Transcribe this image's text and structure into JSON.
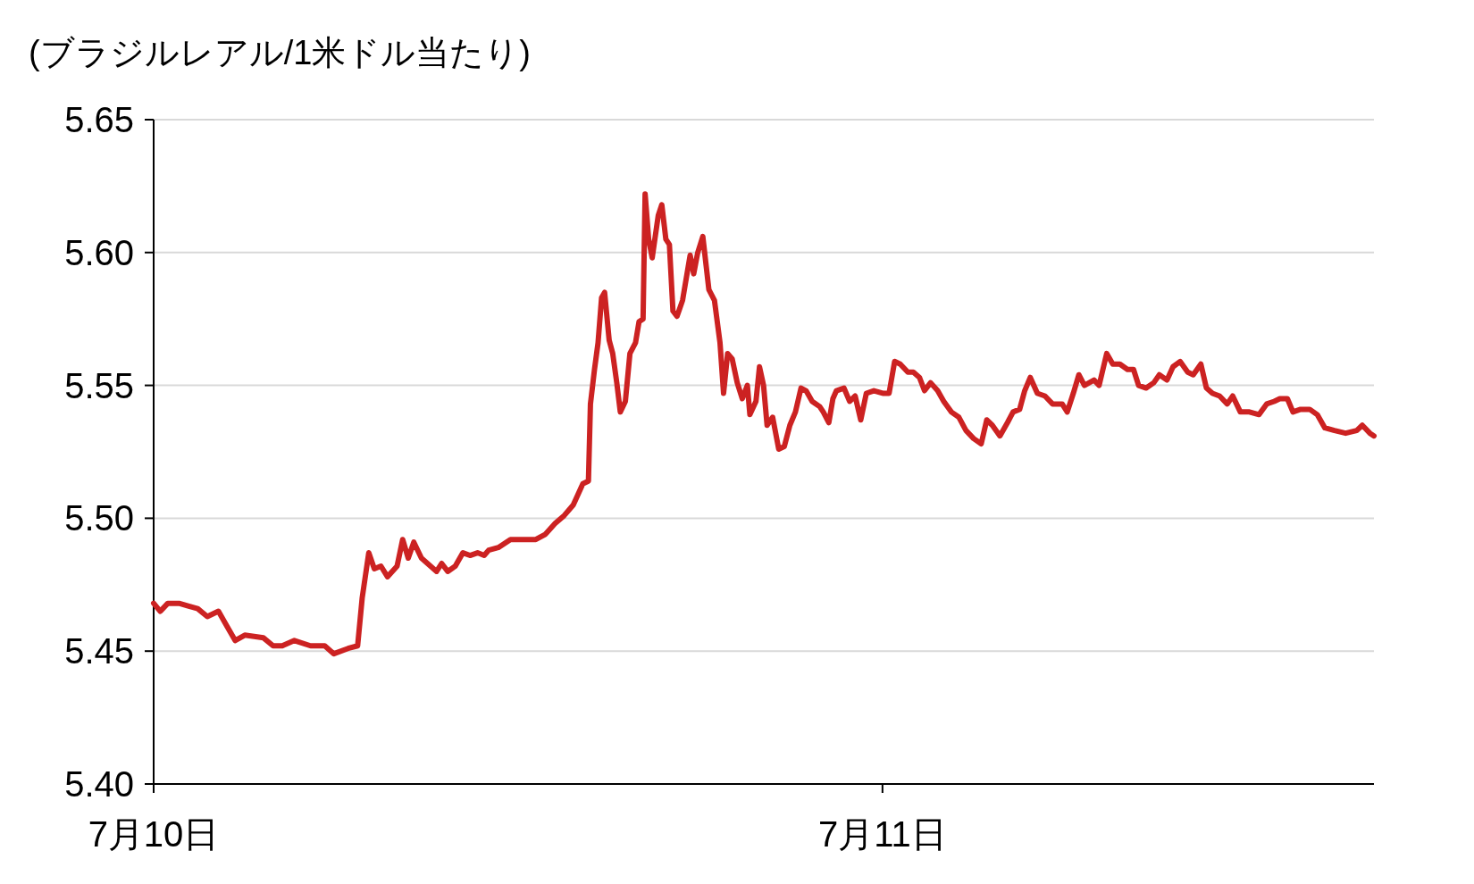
{
  "chart_data": {
    "type": "line",
    "ylabel": "(ブラジルレアル/1米ドル当たり)",
    "x": [
      "--07-10T00:00",
      "--07-10T00:13",
      "--07-10T00:28",
      "--07-10T00:50",
      "--07-10T01:08",
      "--07-10T01:27",
      "--07-10T01:46",
      "--07-10T02:08",
      "--07-10T02:23",
      "--07-10T02:41",
      "--07-10T03:00",
      "--07-10T03:37",
      "--07-10T03:56",
      "--07-10T04:14",
      "--07-10T04:38",
      "--07-10T05:10",
      "--07-10T05:38",
      "--07-10T05:56",
      "--07-10T06:24",
      "--07-10T06:43",
      "--07-10T06:52",
      "--07-10T07:05",
      "--07-10T07:16",
      "--07-10T07:29",
      "--07-10T07:42",
      "--07-10T08:01",
      "--07-10T08:12",
      "--07-10T08:23",
      "--07-10T08:34",
      "--07-10T08:49",
      "--07-10T09:07",
      "--07-10T09:19",
      "--07-10T09:29",
      "--07-10T09:41",
      "--07-10T09:56",
      "--07-10T10:11",
      "--07-10T10:25",
      "--07-10T10:40",
      "--07-10T10:53",
      "--07-10T11:02",
      "--07-10T11:21",
      "--07-10T11:45",
      "--07-10T12:07",
      "--07-10T12:35",
      "--07-10T12:54",
      "--07-10T13:13",
      "--07-10T13:31",
      "--07-10T13:49",
      "--07-10T14:08",
      "--07-10T14:19",
      "--07-10T14:23",
      "--07-10T14:31",
      "--07-10T14:38",
      "--07-10T14:45",
      "--07-10T14:51",
      "--07-10T15:00",
      "--07-10T15:07",
      "--07-10T15:15",
      "--07-10T15:22",
      "--07-10T15:32",
      "--07-10T15:41",
      "--07-10T15:52",
      "--07-10T15:59",
      "--07-10T16:07",
      "--07-10T16:11",
      "--07-10T16:18",
      "--07-10T16:25",
      "--07-10T16:37",
      "--07-10T16:44",
      "--07-10T16:52",
      "--07-10T16:59",
      "--07-10T17:06",
      "--07-10T17:14",
      "--07-10T17:25",
      "--07-10T17:40",
      "--07-10T17:47",
      "--07-10T17:55",
      "--07-10T18:05",
      "--07-10T18:17",
      "--07-10T18:28",
      "--07-10T18:39",
      "--07-10T18:46",
      "--07-10T18:54",
      "--07-10T19:03",
      "--07-10T19:13",
      "--07-10T19:23",
      "--07-10T19:33",
      "--07-10T19:38",
      "--07-10T19:50",
      "--07-10T19:57",
      "--07-10T20:05",
      "--07-10T20:12",
      "--07-10T20:23",
      "--07-10T20:35",
      "--07-10T20:46",
      "--07-10T20:57",
      "--07-10T21:08",
      "--07-10T21:19",
      "--07-10T21:29",
      "--07-10T21:41",
      "--07-10T21:56",
      "--07-10T22:03",
      "--07-10T22:14",
      "--07-10T22:22",
      "--07-10T22:29",
      "--07-10T22:44",
      "--07-10T22:55",
      "--07-10T23:06",
      "--07-10T23:17",
      "--07-10T23:28",
      "--07-10T23:43",
      "--07-11T00:02",
      "--07-11T00:13",
      "--07-11T00:24",
      "--07-11T00:35",
      "--07-11T00:50",
      "--07-11T01:01",
      "--07-11T01:13",
      "--07-11T01:23",
      "--07-11T01:35",
      "--07-11T01:49",
      "--07-11T02:01",
      "--07-11T02:16",
      "--07-11T02:31",
      "--07-11T02:45",
      "--07-11T03:00",
      "--07-11T03:15",
      "--07-11T03:26",
      "--07-11T03:37",
      "--07-11T03:52",
      "--07-11T04:07",
      "--07-11T04:18",
      "--07-11T04:31",
      "--07-11T04:41",
      "--07-11T04:52",
      "--07-11T05:06",
      "--07-11T05:21",
      "--07-11T05:36",
      "--07-11T05:55",
      "--07-11T06:05",
      "--07-11T06:17",
      "--07-11T06:28",
      "--07-11T06:39",
      "--07-11T06:58",
      "--07-11T07:08",
      "--07-11T07:23",
      "--07-11T07:35",
      "--07-11T07:49",
      "--07-11T08:04",
      "--07-11T08:16",
      "--07-11T08:26",
      "--07-11T08:41",
      "--07-11T08:56",
      "--07-11T09:07",
      "--07-11T09:22",
      "--07-11T09:34",
      "--07-11T09:48",
      "--07-11T10:03",
      "--07-11T10:14",
      "--07-11T10:29",
      "--07-11T10:40",
      "--07-11T10:52",
      "--07-11T11:06",
      "--07-11T11:21",
      "--07-11T11:32",
      "--07-11T11:47",
      "--07-11T12:05",
      "--07-11T12:24",
      "--07-11T12:39",
      "--07-11T12:54",
      "--07-11T13:05",
      "--07-11T13:20",
      "--07-11T13:31",
      "--07-11T13:46",
      "--07-11T14:04",
      "--07-11T14:19",
      "--07-11T14:34",
      "--07-11T14:53",
      "--07-11T15:15",
      "--07-11T15:37",
      "--07-11T15:48",
      "--07-11T16:03",
      "--07-11T16:11"
    ],
    "series": [
      {
        "color": "#cc2222",
        "values": [
          5.468,
          5.465,
          5.468,
          5.468,
          5.467,
          5.466,
          5.463,
          5.465,
          5.46,
          5.454,
          5.456,
          5.455,
          5.452,
          5.452,
          5.454,
          5.452,
          5.452,
          5.449,
          5.451,
          5.452,
          5.47,
          5.487,
          5.481,
          5.482,
          5.478,
          5.482,
          5.492,
          5.485,
          5.491,
          5.485,
          5.482,
          5.48,
          5.483,
          5.48,
          5.482,
          5.487,
          5.486,
          5.487,
          5.486,
          5.488,
          5.489,
          5.492,
          5.492,
          5.492,
          5.494,
          5.498,
          5.501,
          5.505,
          5.513,
          5.514,
          5.543,
          5.556,
          5.566,
          5.583,
          5.585,
          5.567,
          5.562,
          5.551,
          5.54,
          5.544,
          5.562,
          5.566,
          5.574,
          5.575,
          5.622,
          5.605,
          5.598,
          5.614,
          5.618,
          5.605,
          5.603,
          5.578,
          5.576,
          5.582,
          5.599,
          5.592,
          5.6,
          5.606,
          5.586,
          5.582,
          5.566,
          5.547,
          5.562,
          5.56,
          5.551,
          5.545,
          5.55,
          5.539,
          5.544,
          5.557,
          5.55,
          5.535,
          5.538,
          5.526,
          5.527,
          5.535,
          5.54,
          5.549,
          5.548,
          5.544,
          5.542,
          5.54,
          5.536,
          5.545,
          5.548,
          5.549,
          5.544,
          5.546,
          5.537,
          5.547,
          5.548,
          5.547,
          5.547,
          5.559,
          5.558,
          5.555,
          5.555,
          5.553,
          5.548,
          5.551,
          5.548,
          5.544,
          5.54,
          5.538,
          5.533,
          5.53,
          5.528,
          5.537,
          5.535,
          5.531,
          5.536,
          5.54,
          5.541,
          5.548,
          5.553,
          5.547,
          5.546,
          5.543,
          5.543,
          5.54,
          5.547,
          5.554,
          5.55,
          5.552,
          5.55,
          5.562,
          5.558,
          5.558,
          5.556,
          5.556,
          5.55,
          5.549,
          5.551,
          5.554,
          5.552,
          5.557,
          5.559,
          5.555,
          5.554,
          5.558,
          5.549,
          5.547,
          5.546,
          5.543,
          5.546,
          5.54,
          5.54,
          5.539,
          5.543,
          5.544,
          5.545,
          5.545,
          5.54,
          5.541,
          5.541,
          5.539,
          5.534,
          5.533,
          5.532,
          5.533,
          5.535,
          5.532,
          5.531
        ]
      }
    ],
    "xlim": [
      "--07-10T00:00",
      "--07-11T16:11"
    ],
    "xticks": [
      {
        "value": "--07-10",
        "label": "7月10日"
      },
      {
        "value": "--07-11",
        "label": "7月11日"
      }
    ],
    "ylim": [
      5.4,
      5.65
    ],
    "yticks": [
      {
        "value": 5.4,
        "label": "5.40"
      },
      {
        "value": 5.45,
        "label": "5.45"
      },
      {
        "value": 5.5,
        "label": "5.50"
      },
      {
        "value": 5.55,
        "label": "5.55"
      },
      {
        "value": 5.6,
        "label": "5.60"
      },
      {
        "value": 5.65,
        "label": "5.65"
      }
    ],
    "grid": "y"
  }
}
